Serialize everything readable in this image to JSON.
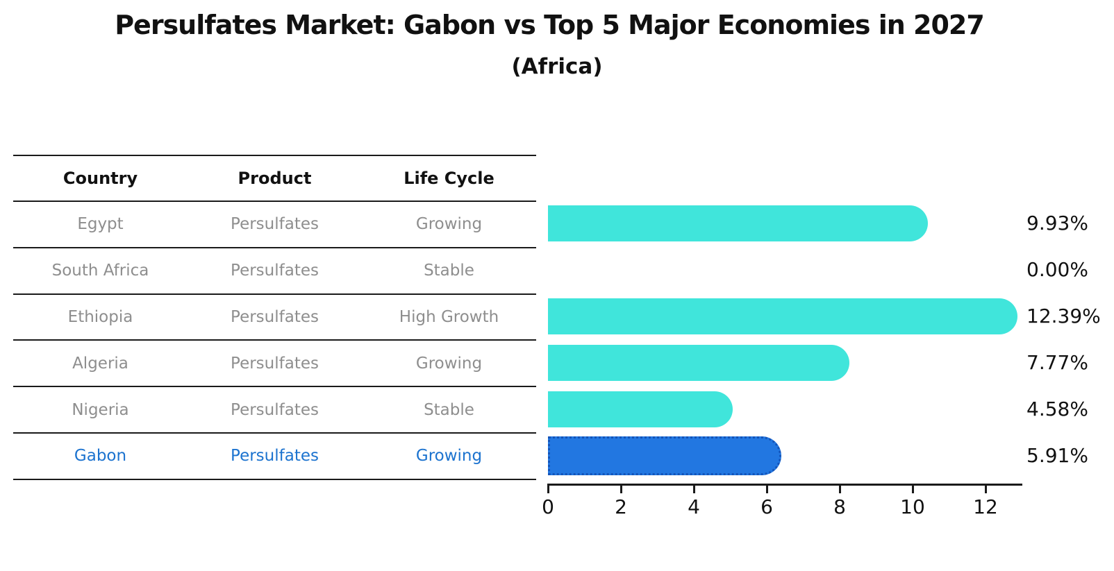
{
  "title": "Persulfates Market: Gabon vs Top 5 Major Economies in 2027",
  "subtitle": "(Africa)",
  "table": {
    "headers": [
      "Country",
      "Product",
      "Life Cycle"
    ],
    "rows": [
      {
        "country": "Egypt",
        "product": "Persulfates",
        "life_cycle": "Growing",
        "highlight": false
      },
      {
        "country": "South Africa",
        "product": "Persulfates",
        "life_cycle": "Stable",
        "highlight": false
      },
      {
        "country": "Ethiopia",
        "product": "Persulfates",
        "life_cycle": "High Growth",
        "highlight": false
      },
      {
        "country": "Algeria",
        "product": "Persulfates",
        "life_cycle": "Growing",
        "highlight": false
      },
      {
        "country": "Nigeria",
        "product": "Persulfates",
        "life_cycle": "Stable",
        "highlight": false
      },
      {
        "country": "Gabon",
        "product": "Persulfates",
        "life_cycle": "Growing",
        "highlight": true
      }
    ]
  },
  "chart_data": {
    "type": "bar",
    "orientation": "horizontal",
    "categories": [
      "Egypt",
      "South Africa",
      "Ethiopia",
      "Algeria",
      "Nigeria",
      "Gabon"
    ],
    "values": [
      9.93,
      0.0,
      12.39,
      7.77,
      4.58,
      5.91
    ],
    "value_labels": [
      "9.93%",
      "0.00%",
      "12.39%",
      "7.77%",
      "4.58%",
      "5.91%"
    ],
    "highlight_index": 5,
    "xlim": [
      0,
      13
    ],
    "xticks": [
      0,
      2,
      4,
      6,
      8,
      10,
      12
    ],
    "grid": false,
    "title": "Persulfates Market: Gabon vs Top 5 Major Economies in 2027",
    "subtitle": "(Africa)",
    "xlabel": "",
    "ylabel": ""
  },
  "colors": {
    "bar": "#40e5db",
    "highlight_bar": "#2277e1",
    "highlight_bar_border": "#1454b8",
    "highlight_text": "#1c73cf",
    "table_text": "#8e8e8e",
    "heading_text": "#111111",
    "axis": "#1a1a1a",
    "background": "#ffffff"
  }
}
